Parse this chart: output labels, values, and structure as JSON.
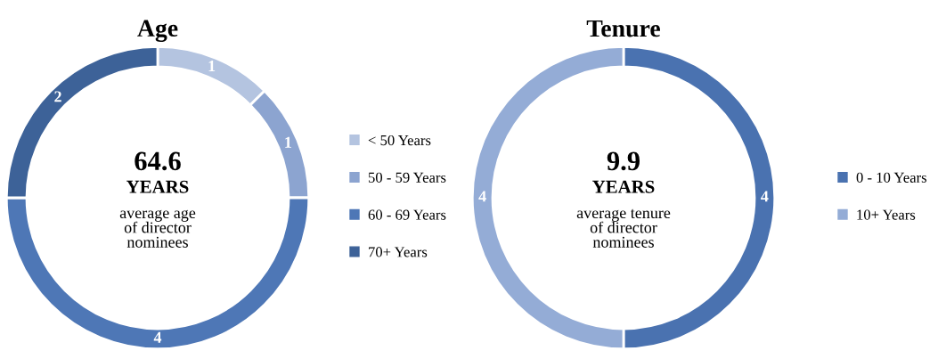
{
  "chart_data": [
    {
      "type": "donut",
      "title": "Age",
      "categories": [
        "< 50 Years",
        "50 - 59 Years",
        "60 - 69 Years",
        "70+ Years"
      ],
      "values": [
        1,
        1,
        4,
        2
      ],
      "colors": [
        "#b4c4e0",
        "#8ca4d0",
        "#4e77b6",
        "#3d6298"
      ],
      "data_labels": true,
      "legend": "right",
      "annotations": [
        "64.6",
        "YEARS",
        "average age\nof director\nnominees"
      ]
    },
    {
      "type": "donut",
      "title": "Tenure",
      "categories": [
        "0 - 10 Years",
        "10+ Years"
      ],
      "values": [
        4,
        4
      ],
      "colors": [
        "#4a72b0",
        "#94acd6"
      ],
      "data_labels": true,
      "legend": "right",
      "annotations": [
        "9.9",
        "YEARS",
        "average tenure\nof director\nnominees"
      ]
    }
  ]
}
